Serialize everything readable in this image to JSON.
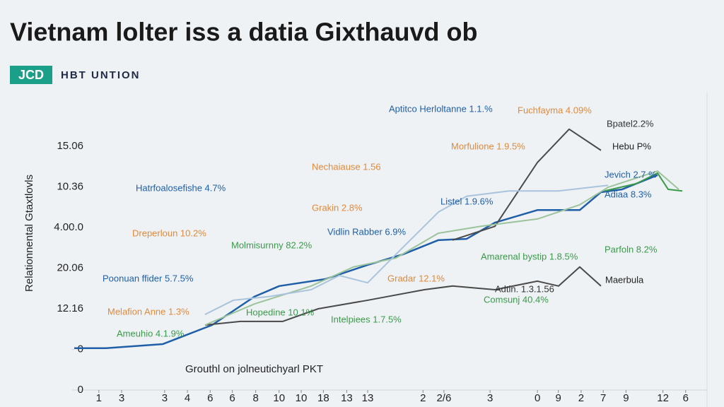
{
  "header": {
    "title": "Vietnam lolter iss a datia Gixthauvd ob",
    "logo": "JCD",
    "brand": "HBT UNTION"
  },
  "chart_data": {
    "type": "line",
    "y_label": "Relationnental Gtaxtlovls",
    "x_label": "Grouthl on jolneutichyarl PKT",
    "xlim": [
      0,
      100
    ],
    "ylim": [
      0,
      6.5
    ],
    "grid": false,
    "xticks": [
      {
        "value": 4,
        "label": "1"
      },
      {
        "value": 7.7,
        "label": "3"
      },
      {
        "value": 14.7,
        "label": "3"
      },
      {
        "value": 18.4,
        "label": "4"
      },
      {
        "value": 22.1,
        "label": "6"
      },
      {
        "value": 25.7,
        "label": "6"
      },
      {
        "value": 29.5,
        "label": "8"
      },
      {
        "value": 33.3,
        "label": "10"
      },
      {
        "value": 36.9,
        "label": "10"
      },
      {
        "value": 40.5,
        "label": "18"
      },
      {
        "value": 44.3,
        "label": "13"
      },
      {
        "value": 47.7,
        "label": "13"
      },
      {
        "value": 56.7,
        "label": "2"
      },
      {
        "value": 60.1,
        "label": "2/6"
      },
      {
        "value": 67.6,
        "label": "3"
      },
      {
        "value": 75.3,
        "label": "0"
      },
      {
        "value": 78.7,
        "label": "9"
      },
      {
        "value": 82.4,
        "label": "2"
      },
      {
        "value": 86,
        "label": "7"
      },
      {
        "value": 89.7,
        "label": "9"
      },
      {
        "value": 95.7,
        "label": "12"
      },
      {
        "value": 99.4,
        "label": "6"
      }
    ],
    "yticks": [
      0,
      {
        "value": 1,
        "label": "0"
      },
      {
        "value": 2,
        "label": "12.16"
      },
      {
        "value": 3,
        "label": "20.06"
      },
      {
        "value": 4,
        "label": "4.00.0"
      },
      {
        "value": 5,
        "label": "10.36"
      },
      {
        "value": 6,
        "label": "15.06"
      }
    ],
    "series": [
      {
        "color": "#1f5fa8",
        "x": [
          0,
          5.17,
          14.37,
          22.41,
          29.31,
          33.33,
          40.8,
          47.7,
          53.45,
          59.2,
          63.79,
          68.39,
          75.29,
          82.18,
          85.63,
          89.08,
          94.83
        ],
        "values": [
          1.03,
          1.03,
          1.13,
          1.6,
          2.3,
          2.56,
          2.73,
          3.08,
          3.34,
          3.69,
          3.72,
          4.12,
          4.43,
          4.43,
          4.87,
          4.94,
          5.29
        ]
      },
      {
        "color": "#4a4a4a",
        "x": [
          21.26,
          27.01,
          33.91,
          39.66,
          47.7,
          56.9,
          61.49,
          68.39,
          75.29,
          78.74,
          82.18,
          85.63
        ],
        "values": [
          1.6,
          1.69,
          1.69,
          2,
          2.21,
          2.47,
          2.56,
          2.47,
          2.68,
          2.56,
          3.03,
          2.56
        ]
      },
      {
        "color": "#4a4a4a",
        "x": [
          61.49,
          68.39,
          75.29,
          80.46,
          85.63
        ],
        "values": [
          3.69,
          4.03,
          5.6,
          6.42,
          5.9
        ]
      },
      {
        "color": "#9cc39c",
        "x": [
          21.26,
          29.31,
          38.51,
          45.4,
          52.3,
          59.2,
          66.09,
          75.29,
          82.18,
          86.78,
          94.83,
          98.28
        ],
        "values": [
          1.6,
          2.12,
          2.56,
          3.03,
          3.25,
          3.86,
          4.03,
          4.21,
          4.56,
          4.99,
          5.39,
          4.94
        ]
      },
      {
        "color": "#a9c4dc",
        "x": [
          21.26,
          25.86,
          31.61,
          38.51,
          43.1,
          47.7,
          52.3,
          59.2,
          63.79,
          70.69,
          78.74,
          86.78
        ],
        "values": [
          1.86,
          2.21,
          2.3,
          2.47,
          2.82,
          2.64,
          3.34,
          4.38,
          4.77,
          4.9,
          4.9,
          5.04
        ]
      },
      {
        "color": "#3a9a4a",
        "x": [
          86.21,
          91.38,
          94.83,
          96.55,
          98.85
        ],
        "values": [
          4.9,
          5.08,
          5.34,
          4.94,
          4.9
        ]
      }
    ],
    "annotations": [
      {
        "text": "Aptitco Herloltanne 1.1.%",
        "color": "#1f5fa8"
      },
      {
        "text": "Fuchfayma 4.09%",
        "color": "#e08a3c"
      },
      {
        "text": "Bpatel2.2%",
        "color": "#333333"
      },
      {
        "text": "Hebu P%",
        "color": "#222222"
      },
      {
        "text": "Morfulione 1.9.5%",
        "color": "#e08a3c"
      },
      {
        "text": "Nechaiause 1.56",
        "color": "#e08a3c"
      },
      {
        "text": "Jevich 2.7 %",
        "color": "#1f5fa8"
      },
      {
        "text": "Adiaa 8.3%",
        "color": "#1f5fa8"
      },
      {
        "text": "Hatrfoalosefishe 4.7%",
        "color": "#1f5fa8"
      },
      {
        "text": "Listel 1.9.6%",
        "color": "#1f5fa8"
      },
      {
        "text": "Grakin 2.8%",
        "color": "#e08a3c"
      },
      {
        "text": "Dreperloun 10.2%",
        "color": "#e08a3c"
      },
      {
        "text": "Vidlin Rabber 6.9%",
        "color": "#1f5fa8"
      },
      {
        "text": "Molmisurnny 82.2%",
        "color": "#3a9a4a"
      },
      {
        "text": "Parfoln 8.2%",
        "color": "#3a9a4a"
      },
      {
        "text": "Amarenal bystip 1.8.5%",
        "color": "#3a9a4a"
      },
      {
        "text": "Poonuan ffider 5.7.5%",
        "color": "#1f5fa8"
      },
      {
        "text": "Gradar 12.1%",
        "color": "#e08a3c"
      },
      {
        "text": "Maerbula",
        "color": "#222222"
      },
      {
        "text": "Adtin. 1.3.1.56",
        "color": "#333333"
      },
      {
        "text": "Comsunj 40.4%",
        "color": "#3a9a4a"
      },
      {
        "text": "Melafion Anne 1.3%",
        "color": "#e08a3c"
      },
      {
        "text": "Hopedine 10.1%",
        "color": "#3a9a4a"
      },
      {
        "text": "Intelpiees 1.7.5%",
        "color": "#3a9a4a"
      },
      {
        "text": "Ameuhio 4.1.9%",
        "color": "#3a9a4a"
      }
    ]
  }
}
